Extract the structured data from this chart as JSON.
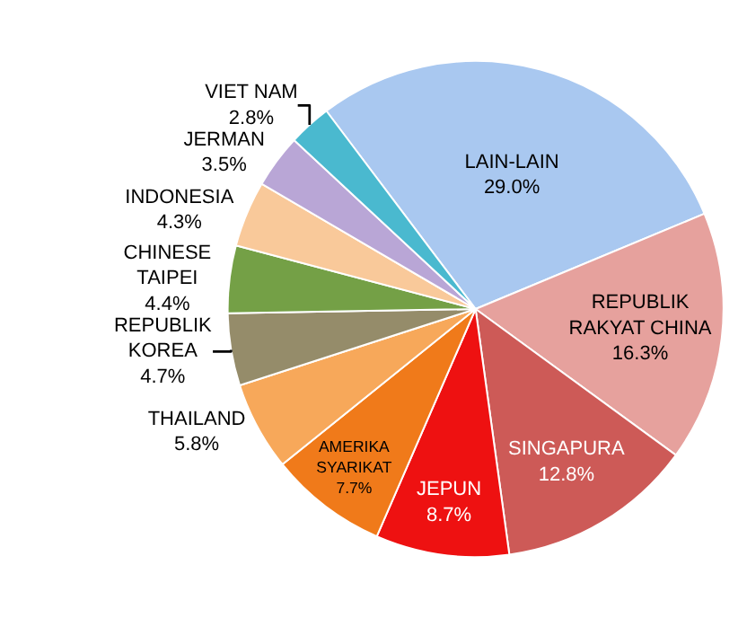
{
  "chart_data": {
    "type": "pie",
    "categories": [
      "LAIN-LAIN",
      "REPUBLIK RAKYAT CHINA",
      "SINGAPURA",
      "JEPUN",
      "AMERIKA SYARIKAT",
      "THAILAND",
      "REPUBLIK KOREA",
      "CHINESE TAIPEI",
      "INDONESIA",
      "JERMAN",
      "VIET NAM"
    ],
    "values": [
      29.0,
      16.3,
      12.8,
      8.7,
      7.7,
      5.8,
      4.7,
      4.4,
      4.3,
      3.5,
      2.8
    ],
    "value_labels": [
      "29.0%",
      "16.3%",
      "12.8%",
      "8.7%",
      "7.7%",
      "5.8%",
      "4.7%",
      "4.4%",
      "4.3%",
      "3.5%",
      "2.8%"
    ],
    "colors": [
      "#a9c8f0",
      "#e6a19d",
      "#cd5a57",
      "#ee1111",
      "#f07a1a",
      "#f7a85a",
      "#958c6a",
      "#74a046",
      "#f9c99a",
      "#b9a6d6",
      "#4ab9cf"
    ],
    "legend": false
  }
}
